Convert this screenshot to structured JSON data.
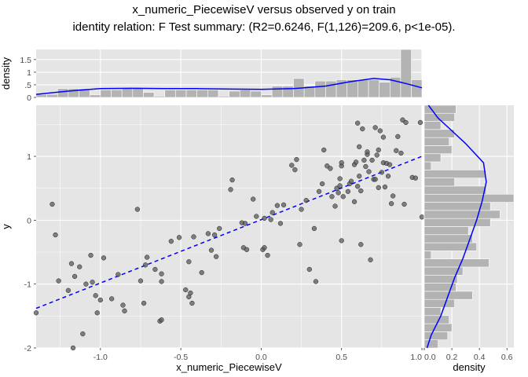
{
  "title_line1": "x_numeric_PiecewiseV versus observed y on train",
  "title_line2": "identity relation: F Test summary: (R2=0.6246, F(1,126)=209.6, p<1e-05).",
  "colors": {
    "panel_bg": "#e5e5e5",
    "grid": "#ffffff",
    "points": "#595959",
    "bars": "#b3b3b3",
    "density_line": "#0000ff",
    "fit_line": "#0000ff"
  },
  "chart_data": [
    {
      "type": "scatter",
      "name": "main",
      "xlabel": "x_numeric_PiecewiseV",
      "ylabel": "y",
      "xlim": [
        -1.4,
        1.0
      ],
      "ylim": [
        -2.0,
        1.8
      ],
      "x_ticks": [
        -1.0,
        -0.5,
        0.0,
        0.5,
        1.0
      ],
      "x_tick_labels": [
        "-1.0",
        "-0.5",
        "0.0",
        "0.5",
        "1.0"
      ],
      "y_ticks": [
        -2,
        -1,
        0,
        1
      ],
      "y_tick_labels": [
        "-2",
        "-1",
        "0",
        "1"
      ],
      "grid": true,
      "fit_line": {
        "style": "dashed",
        "x": [
          -1.4,
          1.0
        ],
        "y": [
          -1.38,
          1.0
        ]
      },
      "points": [
        [
          -1.4,
          -1.45
        ],
        [
          -1.3,
          0.25
        ],
        [
          -1.28,
          -0.23
        ],
        [
          -1.26,
          -0.95
        ],
        [
          -1.2,
          -1.1
        ],
        [
          -1.18,
          -0.68
        ],
        [
          -1.17,
          -2.0
        ],
        [
          -1.16,
          -0.88
        ],
        [
          -1.13,
          -0.73
        ],
        [
          -1.11,
          -1.78
        ],
        [
          -1.09,
          -1.0
        ],
        [
          -1.06,
          -0.55
        ],
        [
          -1.05,
          -0.97
        ],
        [
          -1.03,
          -1.18
        ],
        [
          -1.02,
          -1.45
        ],
        [
          -1.0,
          -1.25
        ],
        [
          -0.98,
          -0.59
        ],
        [
          -0.93,
          -1.23
        ],
        [
          -0.89,
          -0.85
        ],
        [
          -0.86,
          -1.33
        ],
        [
          -0.85,
          -1.42
        ],
        [
          -0.77,
          0.17
        ],
        [
          -0.75,
          -0.95
        ],
        [
          -0.73,
          -1.3
        ],
        [
          -0.72,
          -0.7
        ],
        [
          -0.71,
          -0.58
        ],
        [
          -0.66,
          -0.77
        ],
        [
          -0.63,
          -1.58
        ],
        [
          -0.62,
          -0.84
        ],
        [
          -0.62,
          -0.96
        ],
        [
          -0.62,
          -1.56
        ],
        [
          -0.56,
          -0.33
        ],
        [
          -0.51,
          -0.27
        ],
        [
          -0.47,
          -1.09
        ],
        [
          -0.45,
          -1.2
        ],
        [
          -0.45,
          -0.65
        ],
        [
          -0.44,
          -1.14
        ],
        [
          -0.43,
          -1.3
        ],
        [
          -0.42,
          -0.26
        ],
        [
          -0.37,
          -0.82
        ],
        [
          -0.33,
          -0.21
        ],
        [
          -0.31,
          -0.47
        ],
        [
          -0.29,
          -0.23
        ],
        [
          -0.28,
          -0.57
        ],
        [
          -0.26,
          -0.13
        ],
        [
          -0.19,
          0.48
        ],
        [
          -0.18,
          0.63
        ],
        [
          -0.12,
          -0.04
        ],
        [
          -0.11,
          -0.43
        ],
        [
          -0.1,
          -0.05
        ],
        [
          -0.09,
          -0.46
        ],
        [
          -0.05,
          0.33
        ],
        [
          -0.03,
          0.06
        ],
        [
          0.01,
          -0.46
        ],
        [
          0.02,
          -0.43
        ],
        [
          0.02,
          0.03
        ],
        [
          0.04,
          -0.55
        ],
        [
          0.06,
          0.01
        ],
        [
          0.07,
          0.12
        ],
        [
          0.1,
          0.23
        ],
        [
          0.12,
          -0.05
        ],
        [
          0.14,
          0.24
        ],
        [
          0.19,
          0.86
        ],
        [
          0.21,
          0.79
        ],
        [
          0.22,
          0.95
        ],
        [
          0.24,
          -0.38
        ],
        [
          0.25,
          0.17
        ],
        [
          0.28,
          0.31
        ],
        [
          0.3,
          -0.77
        ],
        [
          0.33,
          -0.13
        ],
        [
          0.34,
          -0.96
        ],
        [
          0.36,
          0.45
        ],
        [
          0.38,
          0.57
        ],
        [
          0.39,
          1.1
        ],
        [
          0.41,
          0.85
        ],
        [
          0.43,
          0.81
        ],
        [
          0.44,
          0.37
        ],
        [
          0.46,
          0.22
        ],
        [
          0.47,
          0.5
        ],
        [
          0.48,
          0.43
        ],
        [
          0.49,
          0.54
        ],
        [
          0.49,
          0.65
        ],
        [
          0.5,
          0.85
        ],
        [
          0.5,
          0.9
        ],
        [
          0.5,
          -0.32
        ],
        [
          0.51,
          0.37
        ],
        [
          0.54,
          0.45
        ],
        [
          0.55,
          0.57
        ],
        [
          0.56,
          0.61
        ],
        [
          0.58,
          0.87
        ],
        [
          0.58,
          0.29
        ],
        [
          0.59,
          0.91
        ],
        [
          0.6,
          1.52
        ],
        [
          0.6,
          0.53
        ],
        [
          0.61,
          1.15
        ],
        [
          0.61,
          0.69
        ],
        [
          0.62,
          0.46
        ],
        [
          0.62,
          -0.38
        ],
        [
          0.63,
          1.43
        ],
        [
          0.64,
          0.94
        ],
        [
          0.65,
          0.84
        ],
        [
          0.66,
          1.03
        ],
        [
          0.66,
          1.07
        ],
        [
          0.67,
          0.76
        ],
        [
          0.68,
          -0.62
        ],
        [
          0.69,
          0.94
        ],
        [
          0.7,
          0.64
        ],
        [
          0.71,
          0.64
        ],
        [
          0.71,
          1.45
        ],
        [
          0.72,
          1.02
        ],
        [
          0.73,
          1.1
        ],
        [
          0.73,
          0.51
        ],
        [
          0.74,
          1.4
        ],
        [
          0.75,
          0.75
        ],
        [
          0.76,
          0.9
        ],
        [
          0.76,
          1.3
        ],
        [
          0.77,
          0.52
        ],
        [
          0.78,
          0.89
        ],
        [
          0.79,
          0.69
        ],
        [
          0.8,
          0.87
        ],
        [
          0.81,
          0.26
        ],
        [
          0.82,
          0.38
        ],
        [
          0.84,
          1.09
        ],
        [
          0.85,
          1.31
        ],
        [
          0.87,
          1.05
        ],
        [
          0.88,
          1.57
        ],
        [
          0.89,
          0.25
        ],
        [
          0.9,
          1.53
        ],
        [
          0.94,
          0.67
        ],
        [
          0.96,
          0.66
        ],
        [
          0.99,
          1.53
        ],
        [
          1.0,
          0.05
        ]
      ]
    },
    {
      "type": "bar",
      "name": "top_marginal",
      "ylabel": "density",
      "ylim": [
        0,
        1.9
      ],
      "y_ticks": [
        0,
        0.5,
        1.0,
        1.5
      ],
      "y_tick_labels": [
        "0",
        ".5",
        "1",
        "1.5"
      ],
      "bin_start": -1.4,
      "bin_width": 0.0667,
      "values": [
        0.12,
        0.12,
        0.35,
        0.35,
        0.35,
        0.1,
        0.3,
        0.3,
        0.35,
        0.4,
        0.2,
        0.05,
        0.3,
        0.3,
        0.3,
        0.3,
        0.3,
        0.05,
        0.25,
        0.3,
        0.25,
        0.1,
        0.45,
        0.45,
        0.75,
        0.45,
        0.65,
        0.65,
        0.7,
        0.7,
        0.7,
        0.7,
        0.6,
        0.8,
        1.9,
        0.7
      ],
      "density_curve": {
        "x": [
          -1.4,
          -1.2,
          -1.0,
          -0.8,
          -0.6,
          -0.4,
          -0.2,
          0.0,
          0.2,
          0.4,
          0.55,
          0.7,
          0.8,
          0.9,
          1.0
        ],
        "y": [
          0.12,
          0.25,
          0.35,
          0.36,
          0.35,
          0.35,
          0.33,
          0.32,
          0.35,
          0.45,
          0.62,
          0.75,
          0.7,
          0.55,
          0.38
        ]
      }
    },
    {
      "type": "bar",
      "name": "right_marginal",
      "orientation": "horizontal",
      "xlabel": "density",
      "xlim": [
        0.0,
        0.65
      ],
      "x_ticks": [
        0.0,
        0.2,
        0.4,
        0.6
      ],
      "x_tick_labels": [
        "0.0",
        "0.2",
        "0.4",
        "0.6"
      ],
      "bin_start": -2.0,
      "bin_width": 0.1267,
      "values": [
        0.1,
        0.17,
        0.2,
        0.18,
        0.12,
        0.22,
        0.35,
        0.23,
        0.24,
        0.28,
        0.47,
        0.05,
        0.38,
        0.35,
        0.32,
        0.48,
        0.55,
        0.48,
        0.7,
        0.45,
        0.22,
        0.45,
        0.05,
        0.12,
        0.2,
        0.18,
        0.22,
        0.12,
        0.22,
        0.23
      ],
      "density_curve": {
        "y": [
          -2.0,
          -1.8,
          -1.5,
          -1.2,
          -0.9,
          -0.6,
          -0.3,
          0.0,
          0.3,
          0.6,
          0.9,
          1.2,
          1.4,
          1.6,
          1.8
        ],
        "x": [
          0.02,
          0.05,
          0.12,
          0.17,
          0.22,
          0.28,
          0.33,
          0.38,
          0.42,
          0.45,
          0.43,
          0.3,
          0.2,
          0.1,
          0.03
        ]
      }
    }
  ]
}
